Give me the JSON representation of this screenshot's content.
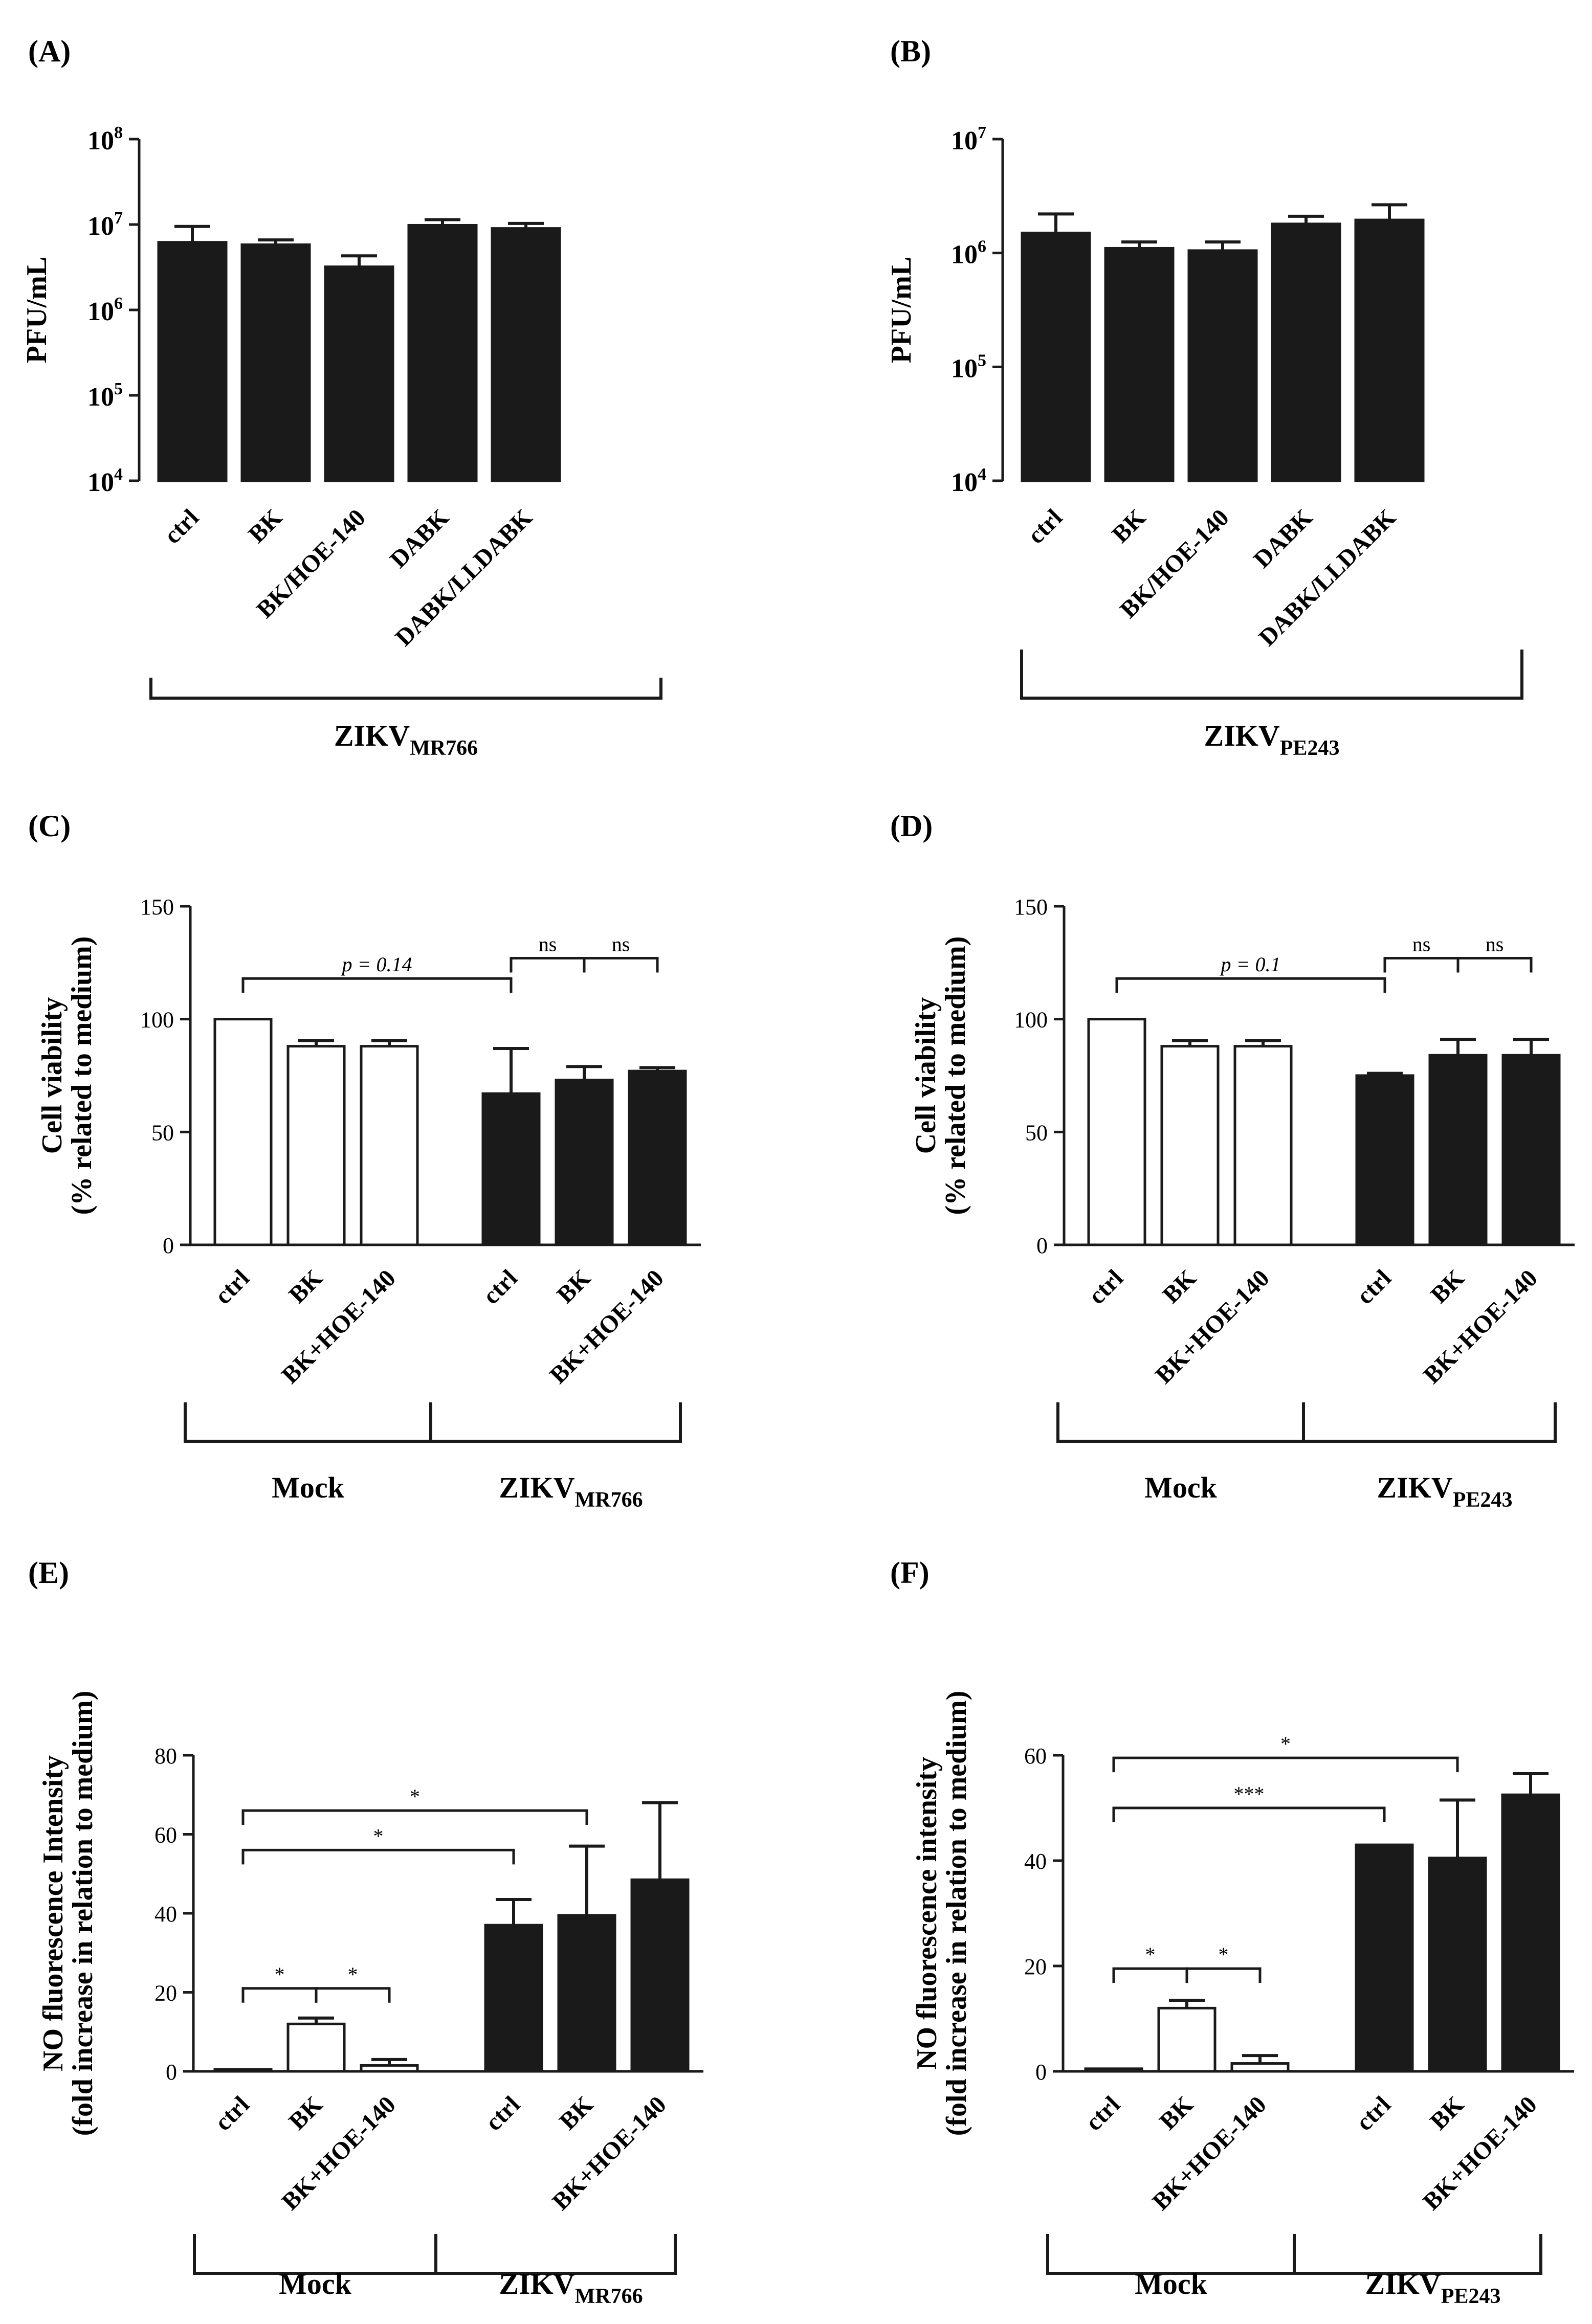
{
  "figure": {
    "panels": {
      "A": "(A)",
      "B": "(B)",
      "C": "(C)",
      "D": "(D)",
      "E": "(E)",
      "F": "(F)"
    },
    "colors": {
      "bar_fill": "#1a1a1a",
      "open_fill": "#ffffff",
      "axis": "#1a1a1a"
    }
  },
  "chart_data": [
    {
      "panel": "(A)",
      "type": "bar",
      "ylabel": "PFU/mL",
      "scale": "log10",
      "ylim": [
        10000,
        100000000
      ],
      "yticks": [
        {
          "value": 100000000,
          "base": "10",
          "exp": "8"
        },
        {
          "value": 10000000,
          "base": "10",
          "exp": "7"
        },
        {
          "value": 1000000,
          "base": "10",
          "exp": "6"
        },
        {
          "value": 100000,
          "base": "10",
          "exp": "5"
        },
        {
          "value": 10000,
          "base": "10",
          "exp": "4"
        }
      ],
      "categories": [
        "ctrl",
        "BK",
        "BK/HOE-140",
        "DABK",
        "DABK/LLDABK"
      ],
      "values": [
        6200000,
        5800000,
        3200000,
        9800000,
        9000000
      ],
      "errors": [
        3300000,
        800000,
        1100000,
        1600000,
        1300000
      ],
      "groups": [
        {
          "name": "ZIKV",
          "sub": "MR766"
        }
      ],
      "grid": false
    },
    {
      "panel": "(B)",
      "type": "bar",
      "ylabel": "PFU/mL",
      "scale": "log10",
      "ylim": [
        10000,
        10000000
      ],
      "yticks": [
        {
          "value": 10000000,
          "base": "10",
          "exp": "7"
        },
        {
          "value": 1000000,
          "base": "10",
          "exp": "6"
        },
        {
          "value": 100000,
          "base": "10",
          "exp": "5"
        },
        {
          "value": 10000,
          "base": "10",
          "exp": "4"
        }
      ],
      "categories": [
        "ctrl",
        "BK",
        "BK/HOE-140",
        "DABK",
        "DABK/LLDABK"
      ],
      "values": [
        1500000,
        1100000,
        1050000,
        1800000,
        1950000
      ],
      "errors": [
        700000,
        150000,
        200000,
        300000,
        700000
      ],
      "groups": [
        {
          "name": "ZIKV",
          "sub": "PE243"
        }
      ],
      "grid": false
    },
    {
      "panel": "(C)",
      "type": "bar",
      "ylabel": [
        "Cell viability",
        "(% related to medium)"
      ],
      "ylim": [
        0,
        150
      ],
      "yticks": [
        0,
        50,
        100,
        150
      ],
      "categories": [
        "ctrl",
        "BK",
        "BK+HOE-140",
        "ctrl",
        "BK",
        "BK+HOE-140"
      ],
      "values": [
        100,
        88,
        88,
        67,
        73,
        77
      ],
      "errors": [
        0,
        2.5,
        2.5,
        20,
        6,
        1.5
      ],
      "filled": [
        false,
        false,
        false,
        true,
        true,
        true
      ],
      "groups": [
        {
          "name": "Mock",
          "sub": ""
        },
        {
          "name": "ZIKV",
          "sub": "MR766"
        }
      ],
      "annotations": [
        {
          "label": "p = 0.14",
          "from": 0,
          "to": 3,
          "level": 118
        },
        {
          "label": "ns",
          "from": 3,
          "to": 4,
          "level": 127
        },
        {
          "label": "ns",
          "from": 4,
          "to": 5,
          "level": 127
        }
      ],
      "grid": false
    },
    {
      "panel": "(D)",
      "type": "bar",
      "ylabel": [
        "Cell viability",
        "(% related to medium)"
      ],
      "ylim": [
        0,
        150
      ],
      "yticks": [
        0,
        50,
        100,
        150
      ],
      "categories": [
        "ctrl",
        "BK",
        "BK+HOE-140",
        "ctrl",
        "BK",
        "BK+HOE-140"
      ],
      "values": [
        100,
        88,
        88,
        75,
        84,
        84
      ],
      "errors": [
        0,
        2.5,
        2.5,
        1,
        7,
        7
      ],
      "filled": [
        false,
        false,
        false,
        true,
        true,
        true
      ],
      "groups": [
        {
          "name": "Mock",
          "sub": ""
        },
        {
          "name": "ZIKV",
          "sub": "PE243"
        }
      ],
      "annotations": [
        {
          "label": "p = 0.1",
          "from": 0,
          "to": 3,
          "level": 118
        },
        {
          "label": "ns",
          "from": 3,
          "to": 4,
          "level": 127
        },
        {
          "label": "ns",
          "from": 4,
          "to": 5,
          "level": 127
        }
      ],
      "grid": false
    },
    {
      "panel": "(E)",
      "type": "bar",
      "ylabel": [
        "NO fluorescence Intensity",
        "(fold increase in relation to medium)"
      ],
      "ylim": [
        0,
        80
      ],
      "yticks": [
        0,
        20,
        40,
        60,
        80
      ],
      "categories": [
        "ctrl",
        "BK",
        "BK+HOE-140",
        "ctrl",
        "BK",
        "BK+HOE-140"
      ],
      "values": [
        0.5,
        12,
        1.5,
        37,
        39.5,
        48.5
      ],
      "errors": [
        0,
        1.5,
        1.5,
        6.5,
        17.5,
        19.5
      ],
      "filled": [
        false,
        false,
        false,
        true,
        true,
        true
      ],
      "groups": [
        {
          "name": "Mock",
          "sub": ""
        },
        {
          "name": "ZIKV",
          "sub": "MR766"
        }
      ],
      "annotations": [
        {
          "label": "*",
          "from": 0,
          "to": 4,
          "level": 66
        },
        {
          "label": "*",
          "from": 0,
          "to": 3,
          "level": 56
        },
        {
          "label": "*",
          "from": 0,
          "to": 1,
          "level": 21
        },
        {
          "label": "*",
          "from": 1,
          "to": 2,
          "level": 21
        }
      ],
      "grid": false
    },
    {
      "panel": "(F)",
      "type": "bar",
      "ylabel": [
        "NO fluorescence intensity",
        "(fold increase in relation to medium)"
      ],
      "ylim": [
        0,
        60
      ],
      "yticks": [
        0,
        20,
        40,
        60
      ],
      "categories": [
        "ctrl",
        "BK",
        "BK+HOE-140",
        "ctrl",
        "BK",
        "BK+HOE-140"
      ],
      "values": [
        0.5,
        12,
        1.5,
        43,
        40.5,
        52.5
      ],
      "errors": [
        0,
        1.5,
        1.5,
        0,
        11,
        4
      ],
      "filled": [
        false,
        false,
        false,
        true,
        true,
        true
      ],
      "groups": [
        {
          "name": "Mock",
          "sub": ""
        },
        {
          "name": "ZIKV",
          "sub": "PE243"
        }
      ],
      "annotations": [
        {
          "label": "*",
          "from": 0,
          "to": 4,
          "level": 59.5
        },
        {
          "label": "***",
          "from": 0,
          "to": 3,
          "level": 50
        },
        {
          "label": "*",
          "from": 0,
          "to": 1,
          "level": 19.5
        },
        {
          "label": "*",
          "from": 1,
          "to": 2,
          "level": 19.5
        }
      ],
      "grid": false
    }
  ]
}
